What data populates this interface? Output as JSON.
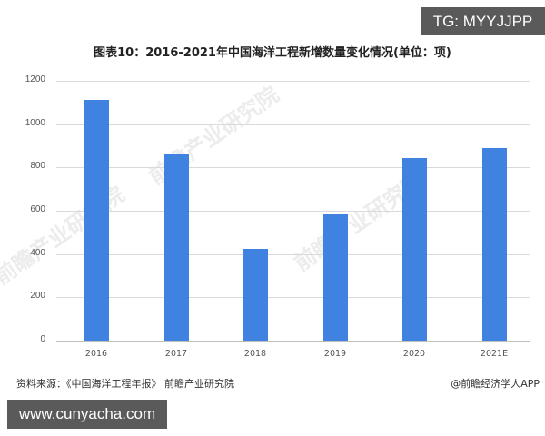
{
  "tg_badge": "TG: MYYJJPP",
  "site_badge": "www.cunyacha.com",
  "source_note": "资料来源：《中国海洋工程年报》 前瞻产业研究院",
  "credit_note": "@前瞻经济学人APP",
  "watermark_text": "前瞻产业研究院",
  "colors": {
    "bar": "#3f82e0",
    "badge_bg": "#5a5a5a",
    "grid": "#d9d9d9"
  },
  "chart_data": {
    "type": "bar",
    "title": "图表10：2016-2021年中国海洋工程新增数量变化情况(单位：项)",
    "xlabel": "",
    "ylabel": "",
    "categories": [
      "2016",
      "2017",
      "2018",
      "2019",
      "2020",
      "2021E"
    ],
    "values": [
      1112,
      866,
      423,
      584,
      844,
      888
    ],
    "ylim": [
      0,
      1200
    ],
    "yticks": [
      "0",
      "200",
      "400",
      "600",
      "800",
      "1000",
      "1200"
    ],
    "grid": true,
    "legend": "none"
  }
}
